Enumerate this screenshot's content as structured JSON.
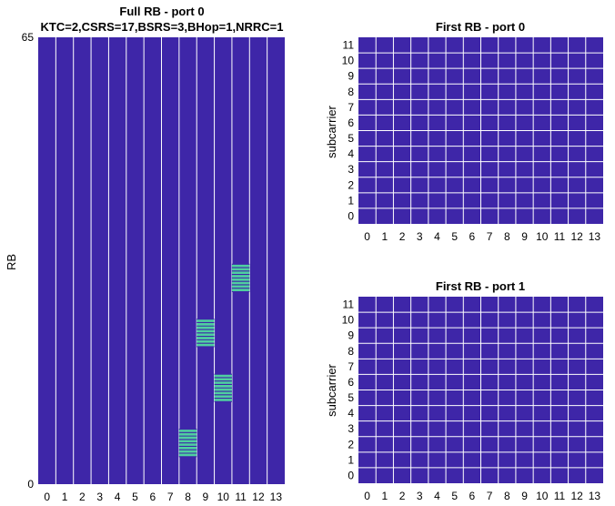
{
  "colors": {
    "background": "#3E26A8",
    "grid": "#FFFFFF",
    "highlight": "#4FCFA0"
  },
  "chart_data": [
    {
      "type": "heatmap",
      "title_lines": [
        "Full RB - port 0",
        "KTC=2,CSRS=17,BSRS=3,BHop=1,NRRC=1"
      ],
      "xlabel": "",
      "ylabel": "RB",
      "x_ticks": [
        "0",
        "1",
        "2",
        "3",
        "4",
        "5",
        "6",
        "7",
        "8",
        "9",
        "10",
        "11",
        "12",
        "13"
      ],
      "y_ticks": [
        "0",
        "65"
      ],
      "xlim": [
        -0.5,
        13.5
      ],
      "ylim": [
        0,
        65
      ],
      "highlighted_blocks": [
        {
          "x": 8,
          "y_start": 4,
          "y_end": 8
        },
        {
          "x": 10,
          "y_start": 12,
          "y_end": 16
        },
        {
          "x": 9,
          "y_start": 20,
          "y_end": 24
        },
        {
          "x": 11,
          "y_start": 28,
          "y_end": 32
        }
      ]
    },
    {
      "type": "heatmap",
      "title": "First RB - port 0",
      "xlabel": "",
      "ylabel": "subcarrier",
      "x_ticks": [
        "0",
        "1",
        "2",
        "3",
        "4",
        "5",
        "6",
        "7",
        "8",
        "9",
        "10",
        "11",
        "12",
        "13"
      ],
      "y_ticks": [
        "0",
        "1",
        "2",
        "3",
        "4",
        "5",
        "6",
        "7",
        "8",
        "9",
        "10",
        "11"
      ],
      "highlighted_cells": []
    },
    {
      "type": "heatmap",
      "title": "First RB - port 1",
      "xlabel": "",
      "ylabel": "subcarrier",
      "x_ticks": [
        "0",
        "1",
        "2",
        "3",
        "4",
        "5",
        "6",
        "7",
        "8",
        "9",
        "10",
        "11",
        "12",
        "13"
      ],
      "y_ticks": [
        "0",
        "1",
        "2",
        "3",
        "4",
        "5",
        "6",
        "7",
        "8",
        "9",
        "10",
        "11"
      ],
      "highlighted_cells": []
    }
  ]
}
